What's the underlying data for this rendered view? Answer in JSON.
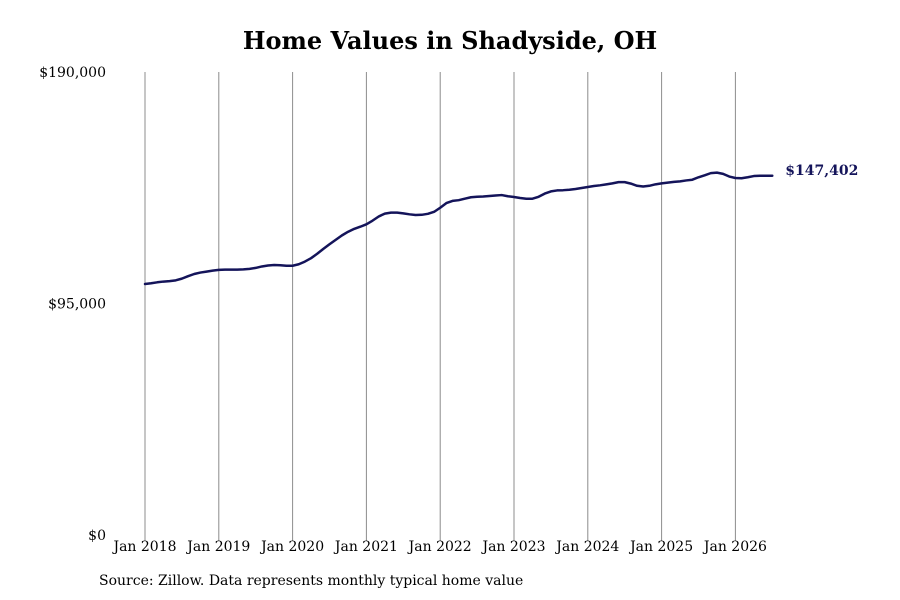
{
  "chart_data": {
    "type": "line",
    "title": "Home Values in Shadyside, OH",
    "source": "Source: Zillow. Data represents monthly typical home value",
    "ylim": [
      0,
      190000
    ],
    "y_ticks": [
      {
        "value": 0,
        "label": "$0"
      },
      {
        "value": 95000,
        "label": "$95,000"
      },
      {
        "value": 190000,
        "label": "$190,000"
      }
    ],
    "x_ticks": [
      "Jan 2018",
      "Jan 2019",
      "Jan 2020",
      "Jan 2021",
      "Jan 2022",
      "Jan 2023",
      "Jan 2024",
      "Jan 2025",
      "Jan 2026"
    ],
    "grid": "vertical",
    "line_color": "#14145a",
    "end_label": "$147,402",
    "series": [
      {
        "x": [
          "2018-01",
          "2018-02",
          "2018-03",
          "2018-04",
          "2018-05",
          "2018-06",
          "2018-07",
          "2018-08",
          "2018-09",
          "2018-10",
          "2018-11",
          "2018-12",
          "2019-01",
          "2019-02",
          "2019-03",
          "2019-04",
          "2019-05",
          "2019-06",
          "2019-07",
          "2019-08",
          "2019-09",
          "2019-10",
          "2019-11",
          "2019-12",
          "2020-01",
          "2020-02",
          "2020-03",
          "2020-04",
          "2020-05",
          "2020-06",
          "2020-07",
          "2020-08",
          "2020-09",
          "2020-10",
          "2020-11",
          "2020-12",
          "2021-01",
          "2021-02",
          "2021-03",
          "2021-04",
          "2021-05",
          "2021-06",
          "2021-07",
          "2021-08",
          "2021-09",
          "2021-10",
          "2021-11",
          "2021-12",
          "2022-01",
          "2022-02",
          "2022-03",
          "2022-04",
          "2022-05",
          "2022-06",
          "2022-07",
          "2022-08",
          "2022-09",
          "2022-10",
          "2022-11",
          "2022-12",
          "2023-01",
          "2023-02",
          "2023-03",
          "2023-04",
          "2023-05",
          "2023-06",
          "2023-07",
          "2023-08",
          "2023-09",
          "2023-10",
          "2023-11",
          "2023-12",
          "2024-01",
          "2024-02",
          "2024-03",
          "2024-04",
          "2024-05",
          "2024-06",
          "2024-07",
          "2024-08",
          "2024-09",
          "2024-10",
          "2024-11",
          "2024-12",
          "2025-01",
          "2025-02",
          "2025-03",
          "2025-04",
          "2025-05",
          "2025-06",
          "2025-07",
          "2025-08",
          "2025-09",
          "2025-10",
          "2025-11",
          "2025-12",
          "2026-01",
          "2026-02",
          "2026-03",
          "2026-04",
          "2026-05",
          "2026-06",
          "2026-07"
        ],
        "y": [
          103000,
          103300,
          103700,
          104000,
          104200,
          104500,
          105200,
          106200,
          107100,
          107700,
          108100,
          108500,
          108800,
          108900,
          108900,
          108900,
          109000,
          109200,
          109600,
          110200,
          110600,
          110800,
          110700,
          110500,
          110500,
          111100,
          112200,
          113600,
          115400,
          117400,
          119300,
          121100,
          122900,
          124400,
          125600,
          126500,
          127500,
          129000,
          130700,
          131900,
          132300,
          132300,
          132000,
          131600,
          131300,
          131400,
          131800,
          132600,
          134300,
          136200,
          137100,
          137400,
          138000,
          138600,
          138800,
          138900,
          139100,
          139300,
          139500,
          139000,
          138700,
          138300,
          138000,
          138000,
          138800,
          140100,
          141000,
          141400,
          141500,
          141700,
          142000,
          142400,
          142800,
          143200,
          143500,
          143900,
          144300,
          144800,
          144800,
          144200,
          143300,
          143000,
          143300,
          143900,
          144300,
          144600,
          144900,
          145100,
          145500,
          145800,
          146800,
          147600,
          148500,
          148700,
          148200,
          147100,
          146500,
          146400,
          146800,
          147300,
          147400,
          147400,
          147402
        ]
      }
    ]
  }
}
